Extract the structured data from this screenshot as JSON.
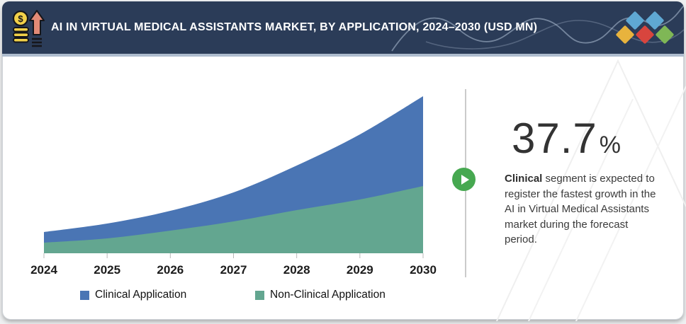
{
  "header": {
    "title": "AI IN VIRTUAL MEDICAL ASSISTANTS MARKET, BY APPLICATION, 2024–2030 (USD MN)",
    "bg_color": "#2b3c58",
    "accent_strip_color": "#aebcce",
    "icon": "coins-growth-icon",
    "logo_icon": "five-diamonds-logo",
    "logo_colors": {
      "blue": "#5fa8d3",
      "yellow": "#e8b33d",
      "red": "#d8453e",
      "green": "#7fb756"
    }
  },
  "chart_data": {
    "type": "area",
    "stacked": true,
    "title": "AI IN VIRTUAL MEDICAL ASSISTANTS MARKET, BY APPLICATION, 2024–2030 (USD MN)",
    "x": [
      "2024",
      "2025",
      "2026",
      "2027",
      "2028",
      "2029",
      "2030"
    ],
    "series": [
      {
        "name": "Clinical Application",
        "color": "#4a75b4",
        "values": [
          15,
          21,
          28,
          41,
          63,
          92,
          127
        ]
      },
      {
        "name": "Non-Clinical Application",
        "color": "#63a690",
        "values": [
          15,
          21,
          32,
          45,
          61,
          76,
          95
        ]
      }
    ],
    "value_note": "USD MN — y-axis unlabeled in figure; values estimated in relative units from pixel heights",
    "xlabel": "",
    "ylabel": "",
    "grid": false,
    "y_axis_visible": false,
    "legend_position": "bottom",
    "tick_color": "#b8b8b8"
  },
  "callout": {
    "value": "37.7",
    "percent_sign": "%",
    "lead_bold": "Clinical",
    "body": " segment is expected to register the fastest growth in the AI in Virtual Medical Assistants market during the forecast period.",
    "play_icon_color": "#46a850"
  }
}
